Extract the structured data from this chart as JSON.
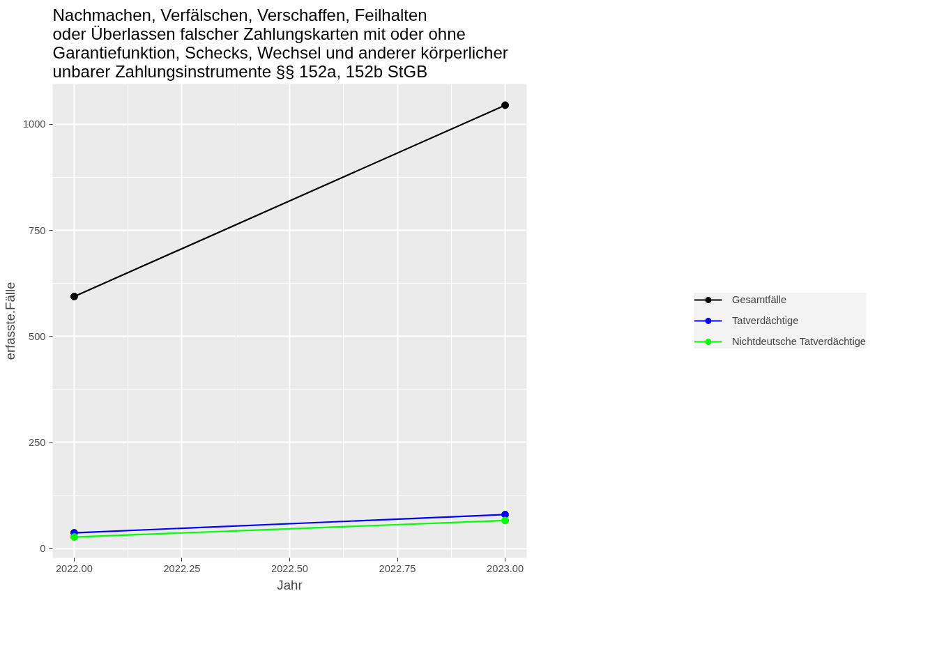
{
  "chart_data": {
    "type": "line",
    "title": "Nachmachen, Verfälschen, Verschaffen, Feilhalten\noder Überlassen falscher Zahlungskarten mit oder ohne\nGarantiefunktion, Schecks, Wechsel und anderer körperlicher\nunbarer Zahlungsinstrumente §§ 152a, 152b StGB",
    "xlabel": "Jahr",
    "ylabel": "erfasste.Fälle",
    "x": [
      2022,
      2023
    ],
    "series": [
      {
        "name": "Gesamtfälle",
        "color": "#000000",
        "values": [
          594,
          1045
        ]
      },
      {
        "name": "Tatverdächtige",
        "color": "#0000ff",
        "values": [
          37,
          80
        ]
      },
      {
        "name": "Nichtdeutsche Tatverdächtige",
        "color": "#00ff00",
        "values": [
          27,
          66
        ]
      }
    ],
    "xlim": [
      2021.95,
      2023.05
    ],
    "ylim": [
      -22,
      1095
    ],
    "xticks": [
      {
        "value": 2022,
        "label": "2022.00"
      },
      {
        "value": 2022.25,
        "label": "2022.25"
      },
      {
        "value": 2022.5,
        "label": "2022.50"
      },
      {
        "value": 2022.75,
        "label": "2022.75"
      },
      {
        "value": 2023,
        "label": "2023.00"
      }
    ],
    "yticks": [
      0,
      250,
      500,
      750,
      1000
    ],
    "grid": true,
    "legend": "right",
    "marker": "circle",
    "line_style": "solid"
  }
}
